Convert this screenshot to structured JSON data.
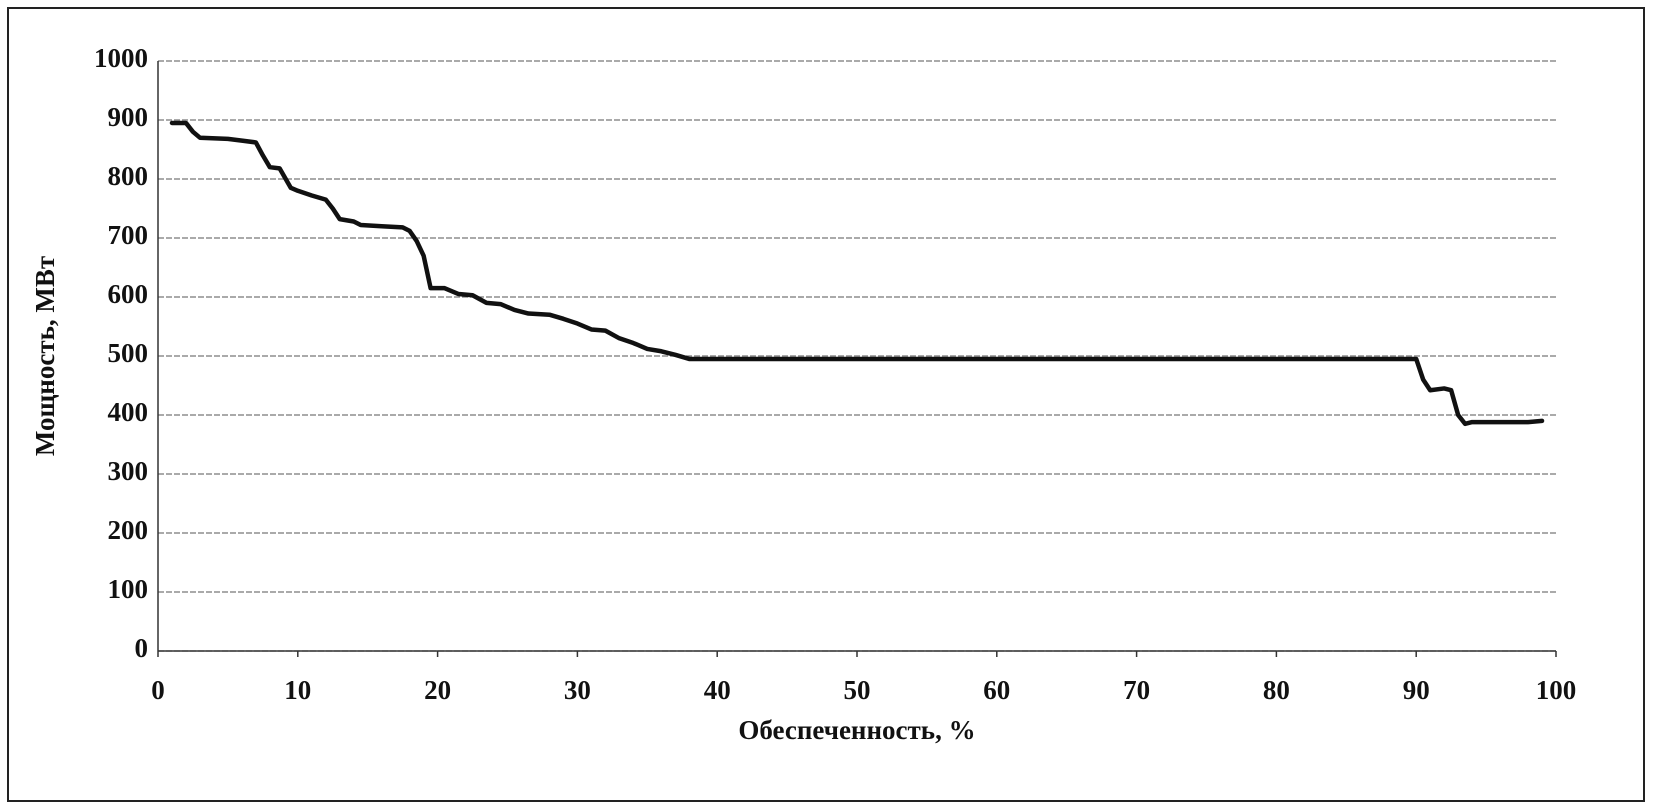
{
  "chart_data": {
    "type": "line",
    "x_label": "Обеспеченность, %",
    "y_label": "Мощность, МВт",
    "x": [
      1,
      2,
      2.5,
      3,
      5,
      6,
      7,
      7.5,
      8,
      8.7,
      9.5,
      10,
      11,
      12,
      12.5,
      13,
      14,
      14.5,
      16,
      17.5,
      18,
      18.5,
      19,
      19.5,
      20.5,
      21.5,
      22.5,
      23.5,
      24.5,
      25.5,
      26.5,
      28,
      29,
      30,
      31,
      32,
      33,
      34,
      35,
      36,
      37,
      38,
      40,
      60,
      80,
      90,
      90.5,
      91,
      92,
      92.5,
      93,
      93.5,
      94,
      96,
      98,
      99
    ],
    "values": [
      895,
      895,
      880,
      870,
      868,
      865,
      862,
      840,
      820,
      818,
      785,
      780,
      772,
      765,
      750,
      732,
      728,
      722,
      720,
      718,
      712,
      695,
      670,
      615,
      615,
      605,
      603,
      590,
      588,
      578,
      572,
      570,
      563,
      555,
      545,
      543,
      530,
      522,
      512,
      508,
      502,
      495,
      495,
      495,
      495,
      495,
      460,
      442,
      445,
      442,
      400,
      385,
      388,
      388,
      388,
      390
    ],
    "color": "#111111",
    "xlim": [
      0,
      100
    ],
    "xticks": [
      0,
      10,
      20,
      30,
      40,
      50,
      60,
      70,
      80,
      90,
      100
    ],
    "ylim": [
      0,
      1000
    ],
    "yticks": [
      0,
      100,
      200,
      300,
      400,
      500,
      600,
      700,
      800,
      900,
      1000
    ],
    "grid": true
  }
}
